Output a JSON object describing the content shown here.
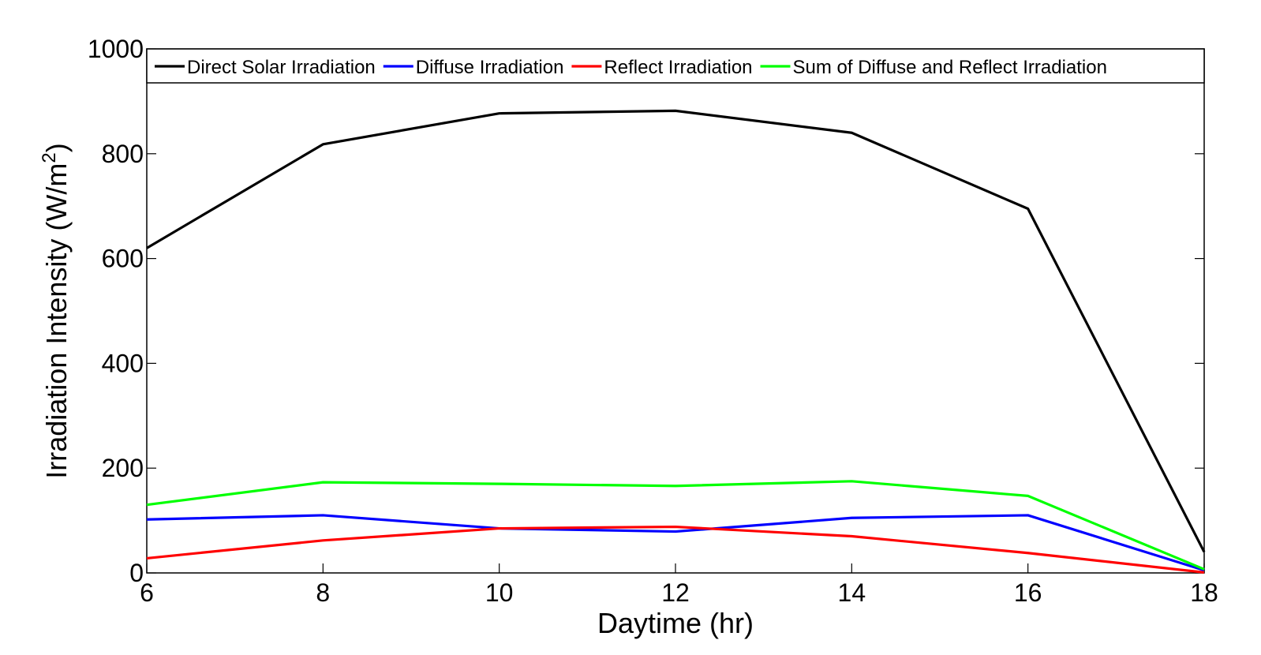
{
  "chart_data": {
    "type": "line",
    "title": "",
    "xlabel": "Daytime (hr)",
    "ylabel_main": "Irradiation Intensity (W/m",
    "ylabel_sup": "2",
    "ylabel_end": ")",
    "xlim": [
      6,
      18
    ],
    "ylim": [
      0,
      1000
    ],
    "x": [
      6,
      8,
      10,
      12,
      14,
      16,
      18
    ],
    "x_ticks": [
      "6",
      "8",
      "10",
      "12",
      "14",
      "16",
      "18"
    ],
    "y_ticks": [
      "0",
      "200",
      "400",
      "600",
      "800",
      "1000"
    ],
    "grid": false,
    "legend_placement": "top, full width, single row",
    "series": [
      {
        "name": "Direct Solar Irradiation",
        "color": "#000000",
        "values": [
          620,
          818,
          877,
          882,
          840,
          695,
          40
        ]
      },
      {
        "name": "Diffuse Irradiation",
        "color": "#0000ff",
        "values": [
          102,
          110,
          85,
          79,
          105,
          110,
          5
        ]
      },
      {
        "name": "Reflect Irradiation",
        "color": "#ff0000",
        "values": [
          28,
          62,
          85,
          88,
          70,
          38,
          1
        ]
      },
      {
        "name": "Sum of Diffuse and Reflect Irradiation",
        "color": "#00ff00",
        "values": [
          130,
          173,
          170,
          166,
          175,
          147,
          7
        ]
      }
    ]
  }
}
